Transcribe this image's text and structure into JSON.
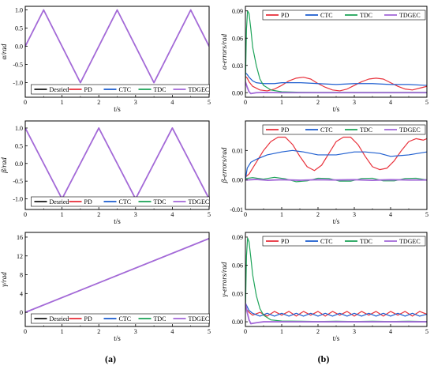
{
  "figure": {
    "label_a": "(a)",
    "label_b": "(b)"
  },
  "colors": {
    "Desried": "#1a1a1a",
    "PD": "#e8323c",
    "CTC": "#1f5fd0",
    "TDC": "#1fa45a",
    "TDGEC": "#a46ad8"
  },
  "chart_data": [
    {
      "id": "alpha",
      "type": "line",
      "title": "",
      "xlabel": "t/s",
      "ylabel": "α/rad",
      "xlim": [
        0,
        5
      ],
      "ylim": [
        -1.4,
        1.1
      ],
      "xticks": [
        0,
        1,
        2,
        3,
        4,
        5
      ],
      "yticks": [
        -1.0,
        -0.5,
        0.0,
        0.5,
        1.0
      ],
      "ytick_labels": [
        "-1.0",
        "-0.5",
        "0.0",
        "0.5",
        "1.0"
      ],
      "legend": [
        "Desried",
        "PD",
        "CTC",
        "TDC",
        "TDGEC"
      ],
      "legend_position": "bottom",
      "series": [
        {
          "name": "Desried",
          "x": [
            0,
            0.5,
            1,
            1.5,
            2,
            2.5,
            3,
            3.5,
            4,
            4.5,
            5
          ],
          "y": [
            0,
            1,
            0,
            -1,
            0,
            1,
            0,
            -1,
            0,
            1,
            0
          ]
        },
        {
          "name": "TDGEC",
          "x": [
            0,
            0.5,
            1,
            1.5,
            2,
            2.5,
            3,
            3.5,
            4,
            4.5,
            5
          ],
          "y": [
            0,
            1,
            0,
            -1,
            0,
            1,
            0,
            -1,
            0,
            1,
            0
          ]
        }
      ]
    },
    {
      "id": "beta",
      "type": "line",
      "title": "",
      "xlabel": "t/s",
      "ylabel": "β/rad",
      "xlim": [
        0,
        5
      ],
      "ylim": [
        -1.3,
        1.2
      ],
      "xticks": [
        0,
        1,
        2,
        3,
        4,
        5
      ],
      "yticks": [
        -1.0,
        -0.5,
        0.0,
        0.5,
        1.0
      ],
      "ytick_labels": [
        "-1.0",
        "-0.5",
        "0.0",
        "0.5",
        "1.0"
      ],
      "legend": [
        "Desried",
        "PD",
        "CTC",
        "TDC",
        "TDGEC"
      ],
      "legend_position": "bottom",
      "series": [
        {
          "name": "Desried",
          "x": [
            0,
            0.5,
            1,
            1.5,
            2,
            2.5,
            3,
            3.5,
            4,
            4.5,
            5
          ],
          "y": [
            1,
            0,
            -1,
            0,
            1,
            0,
            -1,
            0,
            1,
            0,
            -1
          ]
        },
        {
          "name": "TDGEC",
          "x": [
            0,
            0.5,
            1,
            1.5,
            2,
            2.5,
            3,
            3.5,
            4,
            4.5,
            5
          ],
          "y": [
            1,
            0,
            -1,
            0,
            1,
            0,
            -1,
            0,
            1,
            0,
            -1
          ]
        }
      ]
    },
    {
      "id": "gamma",
      "type": "line",
      "title": "",
      "xlabel": "t/s",
      "ylabel": "γ/rad",
      "xlim": [
        0,
        5
      ],
      "ylim": [
        -3,
        17
      ],
      "xticks": [
        0,
        1,
        2,
        3,
        4,
        5
      ],
      "yticks": [
        0,
        4,
        8,
        12,
        16
      ],
      "ytick_labels": [
        "0",
        "4",
        "8",
        "12",
        "16"
      ],
      "legend": [
        "Desried",
        "PD",
        "CTC",
        "TDC",
        "TDGEC"
      ],
      "legend_position": "bottom",
      "series": [
        {
          "name": "Desried",
          "x": [
            0,
            5
          ],
          "y": [
            0,
            15.7
          ]
        },
        {
          "name": "TDGEC",
          "x": [
            0,
            5
          ],
          "y": [
            0,
            15.7
          ]
        }
      ]
    },
    {
      "id": "alpha_err",
      "type": "line",
      "title": "",
      "xlabel": "t/s",
      "ylabel": "α-errors/rad",
      "xlim": [
        0,
        5
      ],
      "ylim": [
        -0.005,
        0.095
      ],
      "xticks": [
        0,
        1,
        2,
        3,
        4,
        5
      ],
      "yticks": [
        0.0,
        0.03,
        0.06,
        0.09
      ],
      "ytick_labels": [
        "0.00",
        "0.03",
        "0.06",
        "0.09"
      ],
      "legend": [
        "PD",
        "CTC",
        "TDC",
        "TDGEC"
      ],
      "legend_position": "top",
      "series": [
        {
          "name": "PD",
          "x": [
            0,
            0.05,
            0.1,
            0.2,
            0.4,
            0.6,
            0.8,
            1.0,
            1.2,
            1.4,
            1.6,
            1.8,
            2.0,
            2.2,
            2.4,
            2.6,
            2.8,
            3.0,
            3.2,
            3.4,
            3.6,
            3.8,
            4.0,
            4.2,
            4.4,
            4.6,
            4.8,
            5.0
          ],
          "y": [
            0.018,
            0.016,
            0.012,
            0.007,
            0.003,
            0.002,
            0.004,
            0.008,
            0.013,
            0.016,
            0.017,
            0.015,
            0.01,
            0.006,
            0.003,
            0.002,
            0.004,
            0.008,
            0.012,
            0.015,
            0.016,
            0.015,
            0.011,
            0.007,
            0.004,
            0.003,
            0.005,
            0.007
          ]
        },
        {
          "name": "CTC",
          "x": [
            0,
            0.05,
            0.1,
            0.2,
            0.3,
            0.5,
            0.8,
            1.0,
            1.5,
            2.0,
            2.5,
            3.0,
            3.5,
            4.0,
            4.5,
            5.0
          ],
          "y": [
            0.022,
            0.02,
            0.017,
            0.013,
            0.011,
            0.01,
            0.01,
            0.011,
            0.011,
            0.01,
            0.009,
            0.01,
            0.01,
            0.009,
            0.009,
            0.008
          ]
        },
        {
          "name": "TDC",
          "x": [
            0,
            0.03,
            0.06,
            0.1,
            0.15,
            0.2,
            0.3,
            0.4,
            0.5,
            0.7,
            1.0,
            1.5,
            2.0,
            2.5,
            3.0,
            3.5,
            4.0,
            4.5,
            5.0
          ],
          "y": [
            0.01,
            0.07,
            0.09,
            0.087,
            0.07,
            0.05,
            0.03,
            0.015,
            0.008,
            0.003,
            0.001,
            0.0005,
            0.0003,
            0.0004,
            0.0003,
            0.0004,
            0.0003,
            0.0004,
            0.0003
          ]
        },
        {
          "name": "TDGEC",
          "x": [
            0,
            0.05,
            0.1,
            0.15,
            0.3,
            0.5,
            1.0,
            2.0,
            3.0,
            4.0,
            5.0
          ],
          "y": [
            0.012,
            0.006,
            0.001,
            -0.001,
            0.0,
            0.0002,
            0.0,
            0.0,
            0.0,
            0.0,
            0.0
          ]
        }
      ]
    },
    {
      "id": "beta_err",
      "type": "line",
      "title": "",
      "xlabel": "t/s",
      "ylabel": "β-errors/rad",
      "xlim": [
        0,
        5
      ],
      "ylim": [
        -0.01,
        0.02
      ],
      "xticks": [
        0,
        1,
        2,
        3,
        4,
        5
      ],
      "yticks": [
        -0.01,
        0.0,
        0.01
      ],
      "ytick_labels": [
        "-0.01",
        "0.00",
        "0.01"
      ],
      "legend": [
        "PD",
        "CTC",
        "TDC",
        "TDGEC"
      ],
      "legend_position": "top",
      "series": [
        {
          "name": "PD",
          "x": [
            0,
            0.1,
            0.3,
            0.5,
            0.7,
            0.9,
            1.1,
            1.3,
            1.5,
            1.7,
            1.9,
            2.1,
            2.3,
            2.5,
            2.7,
            2.9,
            3.1,
            3.3,
            3.5,
            3.7,
            3.9,
            4.1,
            4.3,
            4.5,
            4.7,
            4.9,
            5.0
          ],
          "y": [
            0.001,
            0.002,
            0.006,
            0.01,
            0.013,
            0.0145,
            0.0145,
            0.012,
            0.008,
            0.0045,
            0.0032,
            0.005,
            0.009,
            0.013,
            0.0145,
            0.0145,
            0.012,
            0.008,
            0.0045,
            0.0035,
            0.004,
            0.0065,
            0.01,
            0.013,
            0.014,
            0.0135,
            0.014
          ]
        },
        {
          "name": "CTC",
          "x": [
            0,
            0.05,
            0.15,
            0.3,
            0.6,
            1.0,
            1.3,
            1.6,
            2.0,
            2.5,
            3.0,
            3.3,
            3.7,
            4.0,
            4.5,
            5.0
          ],
          "y": [
            0.0,
            0.004,
            0.006,
            0.007,
            0.0085,
            0.0095,
            0.01,
            0.0095,
            0.0085,
            0.0085,
            0.0095,
            0.0095,
            0.009,
            0.008,
            0.0085,
            0.0095
          ]
        },
        {
          "name": "TDC",
          "x": [
            0,
            0.2,
            0.5,
            0.8,
            1.1,
            1.4,
            1.7,
            2.0,
            2.3,
            2.6,
            2.9,
            3.2,
            3.5,
            3.8,
            4.1,
            4.4,
            4.7,
            5.0
          ],
          "y": [
            0.0005,
            0.0008,
            0.0003,
            0.0009,
            0.0004,
            -0.0006,
            -0.0003,
            0.0006,
            0.0005,
            -0.0004,
            -0.0004,
            0.0005,
            0.0006,
            -0.0003,
            -0.0003,
            0.0005,
            0.0006,
            0.0
          ]
        },
        {
          "name": "TDGEC",
          "x": [
            0,
            0.3,
            0.6,
            1.0,
            1.5,
            2.0,
            2.5,
            3.0,
            3.5,
            4.0,
            4.5,
            5.0
          ],
          "y": [
            0.0,
            0.0002,
            -0.0001,
            0.0001,
            -0.0001,
            0.0001,
            0.0,
            0.0001,
            -0.0001,
            0.0001,
            0.0,
            0.0
          ]
        }
      ]
    },
    {
      "id": "gamma_err",
      "type": "line",
      "title": "",
      "xlabel": "t/s",
      "ylabel": "γ-errors/rad",
      "xlim": [
        0,
        5
      ],
      "ylim": [
        -0.005,
        0.095
      ],
      "xticks": [
        0,
        1,
        2,
        3,
        4,
        5
      ],
      "yticks": [
        0.0,
        0.03,
        0.06,
        0.09
      ],
      "ytick_labels": [
        "0.00",
        "0.03",
        "0.06",
        "0.09"
      ],
      "legend": [
        "PD",
        "CTC",
        "TDC",
        "TDGEC"
      ],
      "legend_position": "top",
      "series": [
        {
          "name": "PD",
          "x": [
            0,
            0.1,
            0.2,
            0.4,
            0.6,
            0.8,
            1.0,
            1.2,
            1.4,
            1.6,
            1.8,
            2.0,
            2.2,
            2.4,
            2.6,
            2.8,
            3.0,
            3.2,
            3.4,
            3.6,
            3.8,
            4.0,
            4.2,
            4.4,
            4.6,
            4.8,
            5.0
          ],
          "y": [
            0.015,
            0.01,
            0.007,
            0.01,
            0.006,
            0.011,
            0.007,
            0.011,
            0.006,
            0.011,
            0.007,
            0.011,
            0.006,
            0.011,
            0.007,
            0.011,
            0.006,
            0.011,
            0.007,
            0.011,
            0.006,
            0.011,
            0.007,
            0.011,
            0.006,
            0.011,
            0.008
          ]
        },
        {
          "name": "CTC",
          "x": [
            0,
            0.1,
            0.2,
            0.4,
            0.6,
            0.8,
            1.0,
            1.2,
            1.4,
            1.6,
            1.8,
            2.0,
            2.2,
            2.4,
            2.6,
            2.8,
            3.0,
            3.2,
            3.4,
            3.6,
            3.8,
            4.0,
            4.2,
            4.4,
            4.6,
            4.8,
            5.0
          ],
          "y": [
            0.02,
            0.012,
            0.009,
            0.006,
            0.009,
            0.006,
            0.009,
            0.006,
            0.009,
            0.006,
            0.009,
            0.006,
            0.009,
            0.006,
            0.009,
            0.006,
            0.009,
            0.006,
            0.009,
            0.006,
            0.009,
            0.006,
            0.009,
            0.006,
            0.009,
            0.006,
            0.008
          ]
        },
        {
          "name": "TDC",
          "x": [
            0,
            0.03,
            0.06,
            0.1,
            0.15,
            0.2,
            0.3,
            0.4,
            0.5,
            0.7,
            1.0,
            1.5,
            2.0,
            2.5,
            3.0,
            3.5,
            4.0,
            4.5,
            5.0
          ],
          "y": [
            0.01,
            0.07,
            0.089,
            0.085,
            0.068,
            0.05,
            0.028,
            0.014,
            0.007,
            0.002,
            0.0008,
            0.0006,
            0.0003,
            0.0006,
            0.0003,
            0.0006,
            0.0003,
            0.0006,
            0.0003
          ]
        },
        {
          "name": "TDGEC",
          "x": [
            0,
            0.05,
            0.1,
            0.15,
            0.3,
            0.5,
            1.0,
            2.0,
            3.0,
            4.0,
            5.0
          ],
          "y": [
            0.02,
            0.01,
            0.002,
            -0.002,
            -0.001,
            0.0,
            0.0,
            0.0,
            0.0,
            0.0,
            0.0
          ]
        }
      ]
    }
  ]
}
